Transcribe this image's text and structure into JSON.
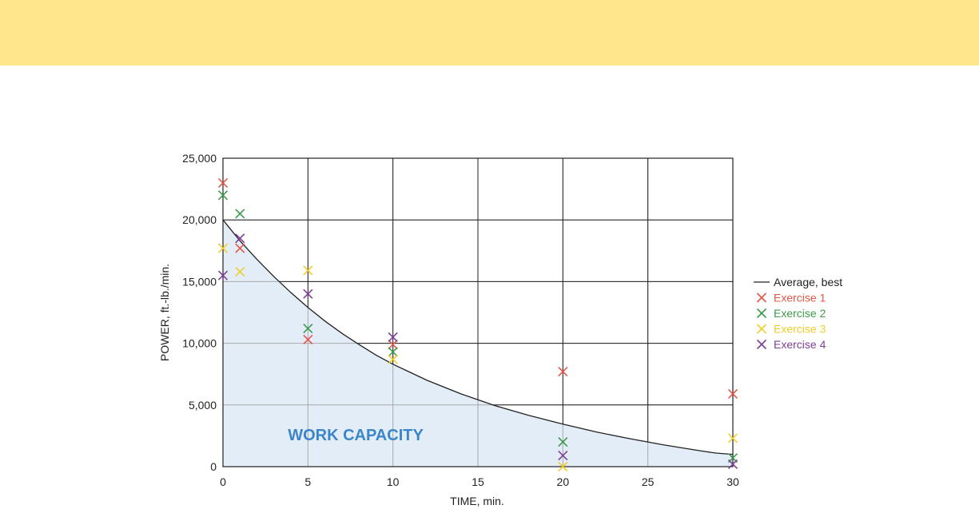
{
  "chart_data": {
    "type": "scatter",
    "title": "",
    "xlabel": "TIME, min.",
    "ylabel": "POWER, ft.-lb./min.",
    "xlim": [
      0,
      30
    ],
    "ylim": [
      0,
      25000
    ],
    "x_ticks": [
      "0",
      "5",
      "10",
      "15",
      "20",
      "25",
      "30"
    ],
    "y_ticks": [
      "0",
      "5,000",
      "10,000",
      "15,000",
      "20,000",
      "25,000"
    ],
    "grid": true,
    "legend_position": "right",
    "region_label": "WORK CAPACITY",
    "curve": {
      "name": "Average, best",
      "color": "#222222",
      "points": [
        [
          0,
          20000
        ],
        [
          1,
          18300
        ],
        [
          2,
          16800
        ],
        [
          3,
          15400
        ],
        [
          4,
          14100
        ],
        [
          5,
          12900
        ],
        [
          6,
          11800
        ],
        [
          7,
          10800
        ],
        [
          8,
          9900
        ],
        [
          9,
          9050
        ],
        [
          10,
          8300
        ],
        [
          12,
          7000
        ],
        [
          14,
          5900
        ],
        [
          16,
          4950
        ],
        [
          18,
          4150
        ],
        [
          20,
          3450
        ],
        [
          22,
          2800
        ],
        [
          24,
          2250
        ],
        [
          26,
          1750
        ],
        [
          28,
          1300
        ],
        [
          29,
          1100
        ],
        [
          30,
          1000
        ]
      ]
    },
    "series": [
      {
        "name": "Exercise 1",
        "color": "#e5564a",
        "points": [
          [
            0,
            23000
          ],
          [
            1,
            17700
          ],
          [
            5,
            10300
          ],
          [
            10,
            9900
          ],
          [
            20,
            7700
          ],
          [
            30,
            5900
          ]
        ]
      },
      {
        "name": "Exercise 2",
        "color": "#3e9a4c",
        "points": [
          [
            0,
            22000
          ],
          [
            1,
            20500
          ],
          [
            5,
            11200
          ],
          [
            10,
            9300
          ],
          [
            20,
            2000
          ],
          [
            30,
            700
          ]
        ]
      },
      {
        "name": "Exercise 3",
        "color": "#f1cd2a",
        "points": [
          [
            0,
            17700
          ],
          [
            1,
            15800
          ],
          [
            5,
            15900
          ],
          [
            10,
            8700
          ],
          [
            20,
            0
          ],
          [
            30,
            2300
          ]
        ]
      },
      {
        "name": "Exercise 4",
        "color": "#7f3f98",
        "points": [
          [
            0,
            15500
          ],
          [
            1,
            18500
          ],
          [
            5,
            14000
          ],
          [
            10,
            10500
          ],
          [
            20,
            900
          ],
          [
            30,
            200
          ]
        ]
      }
    ]
  }
}
